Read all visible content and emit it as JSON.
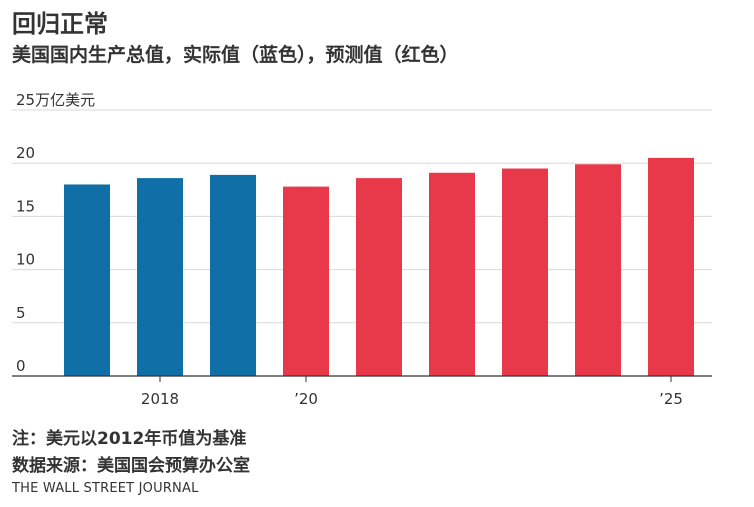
{
  "header": {
    "title": "回归正常",
    "subtitle": "美国国内生产总值，实际值（蓝色），预测值（红色）"
  },
  "footer": {
    "note": "注：美元以2012年币值为基准",
    "source": "数据来源：美国国会预算办公室",
    "brand": "THE WALL STREET JOURNAL"
  },
  "chart_data": {
    "type": "bar",
    "title": "回归正常",
    "subtitle": "美国国内生产总值，实际值（蓝色），预测值（红色）",
    "ylabel": "25万亿美元",
    "ylim": [
      0,
      25
    ],
    "yticks": [
      0,
      5,
      10,
      15,
      20,
      25
    ],
    "ytick_labels": [
      "0",
      "5",
      "10",
      "15",
      "20",
      "25万亿美元"
    ],
    "categories": [
      "2017",
      "2018",
      "2019",
      "2020",
      "2021",
      "2022",
      "2023",
      "2024",
      "2025"
    ],
    "xtick_labels": [
      {
        "index": 1,
        "label": "2018"
      },
      {
        "index": 3,
        "label": "’20"
      },
      {
        "index": 8,
        "label": "’25"
      }
    ],
    "series": [
      {
        "name": "实际值",
        "color": "#0f6fa6",
        "values": [
          18.0,
          18.6,
          18.9,
          null,
          null,
          null,
          null,
          null,
          null
        ]
      },
      {
        "name": "预测值",
        "color": "#e8394a",
        "values": [
          null,
          null,
          null,
          17.8,
          18.6,
          19.1,
          19.5,
          19.9,
          20.5
        ]
      }
    ],
    "grid": true
  }
}
